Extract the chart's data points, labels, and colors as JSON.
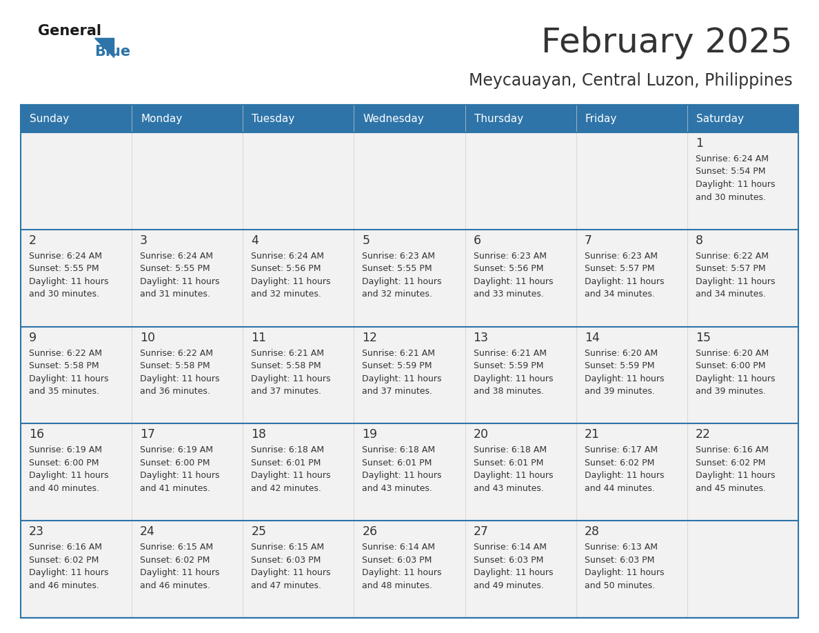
{
  "title": "February 2025",
  "subtitle": "Meycauayan, Central Luzon, Philippines",
  "header_bg": "#2E74A8",
  "header_text": "#FFFFFF",
  "cell_bg_light": "#F2F2F2",
  "border_color": "#2E74A8",
  "day_names": [
    "Sunday",
    "Monday",
    "Tuesday",
    "Wednesday",
    "Thursday",
    "Friday",
    "Saturday"
  ],
  "title_color": "#333333",
  "subtitle_color": "#333333",
  "logo_general_color": "#1A1A1A",
  "logo_blue_color": "#2E74A8",
  "days": [
    {
      "day": 1,
      "col": 6,
      "row": 0,
      "sunrise": "6:24 AM",
      "sunset": "5:54 PM",
      "daylight": "11 hours and 30 minutes."
    },
    {
      "day": 2,
      "col": 0,
      "row": 1,
      "sunrise": "6:24 AM",
      "sunset": "5:55 PM",
      "daylight": "11 hours and 30 minutes."
    },
    {
      "day": 3,
      "col": 1,
      "row": 1,
      "sunrise": "6:24 AM",
      "sunset": "5:55 PM",
      "daylight": "11 hours and 31 minutes."
    },
    {
      "day": 4,
      "col": 2,
      "row": 1,
      "sunrise": "6:24 AM",
      "sunset": "5:56 PM",
      "daylight": "11 hours and 32 minutes."
    },
    {
      "day": 5,
      "col": 3,
      "row": 1,
      "sunrise": "6:23 AM",
      "sunset": "5:55 PM",
      "daylight": "11 hours and 32 minutes."
    },
    {
      "day": 6,
      "col": 4,
      "row": 1,
      "sunrise": "6:23 AM",
      "sunset": "5:56 PM",
      "daylight": "11 hours and 33 minutes."
    },
    {
      "day": 7,
      "col": 5,
      "row": 1,
      "sunrise": "6:23 AM",
      "sunset": "5:57 PM",
      "daylight": "11 hours and 34 minutes."
    },
    {
      "day": 8,
      "col": 6,
      "row": 1,
      "sunrise": "6:22 AM",
      "sunset": "5:57 PM",
      "daylight": "11 hours and 34 minutes."
    },
    {
      "day": 9,
      "col": 0,
      "row": 2,
      "sunrise": "6:22 AM",
      "sunset": "5:58 PM",
      "daylight": "11 hours and 35 minutes."
    },
    {
      "day": 10,
      "col": 1,
      "row": 2,
      "sunrise": "6:22 AM",
      "sunset": "5:58 PM",
      "daylight": "11 hours and 36 minutes."
    },
    {
      "day": 11,
      "col": 2,
      "row": 2,
      "sunrise": "6:21 AM",
      "sunset": "5:58 PM",
      "daylight": "11 hours and 37 minutes."
    },
    {
      "day": 12,
      "col": 3,
      "row": 2,
      "sunrise": "6:21 AM",
      "sunset": "5:59 PM",
      "daylight": "11 hours and 37 minutes."
    },
    {
      "day": 13,
      "col": 4,
      "row": 2,
      "sunrise": "6:21 AM",
      "sunset": "5:59 PM",
      "daylight": "11 hours and 38 minutes."
    },
    {
      "day": 14,
      "col": 5,
      "row": 2,
      "sunrise": "6:20 AM",
      "sunset": "5:59 PM",
      "daylight": "11 hours and 39 minutes."
    },
    {
      "day": 15,
      "col": 6,
      "row": 2,
      "sunrise": "6:20 AM",
      "sunset": "6:00 PM",
      "daylight": "11 hours and 39 minutes."
    },
    {
      "day": 16,
      "col": 0,
      "row": 3,
      "sunrise": "6:19 AM",
      "sunset": "6:00 PM",
      "daylight": "11 hours and 40 minutes."
    },
    {
      "day": 17,
      "col": 1,
      "row": 3,
      "sunrise": "6:19 AM",
      "sunset": "6:00 PM",
      "daylight": "11 hours and 41 minutes."
    },
    {
      "day": 18,
      "col": 2,
      "row": 3,
      "sunrise": "6:18 AM",
      "sunset": "6:01 PM",
      "daylight": "11 hours and 42 minutes."
    },
    {
      "day": 19,
      "col": 3,
      "row": 3,
      "sunrise": "6:18 AM",
      "sunset": "6:01 PM",
      "daylight": "11 hours and 43 minutes."
    },
    {
      "day": 20,
      "col": 4,
      "row": 3,
      "sunrise": "6:18 AM",
      "sunset": "6:01 PM",
      "daylight": "11 hours and 43 minutes."
    },
    {
      "day": 21,
      "col": 5,
      "row": 3,
      "sunrise": "6:17 AM",
      "sunset": "6:02 PM",
      "daylight": "11 hours and 44 minutes."
    },
    {
      "day": 22,
      "col": 6,
      "row": 3,
      "sunrise": "6:16 AM",
      "sunset": "6:02 PM",
      "daylight": "11 hours and 45 minutes."
    },
    {
      "day": 23,
      "col": 0,
      "row": 4,
      "sunrise": "6:16 AM",
      "sunset": "6:02 PM",
      "daylight": "11 hours and 46 minutes."
    },
    {
      "day": 24,
      "col": 1,
      "row": 4,
      "sunrise": "6:15 AM",
      "sunset": "6:02 PM",
      "daylight": "11 hours and 46 minutes."
    },
    {
      "day": 25,
      "col": 2,
      "row": 4,
      "sunrise": "6:15 AM",
      "sunset": "6:03 PM",
      "daylight": "11 hours and 47 minutes."
    },
    {
      "day": 26,
      "col": 3,
      "row": 4,
      "sunrise": "6:14 AM",
      "sunset": "6:03 PM",
      "daylight": "11 hours and 48 minutes."
    },
    {
      "day": 27,
      "col": 4,
      "row": 4,
      "sunrise": "6:14 AM",
      "sunset": "6:03 PM",
      "daylight": "11 hours and 49 minutes."
    },
    {
      "day": 28,
      "col": 5,
      "row": 4,
      "sunrise": "6:13 AM",
      "sunset": "6:03 PM",
      "daylight": "11 hours and 50 minutes."
    }
  ]
}
